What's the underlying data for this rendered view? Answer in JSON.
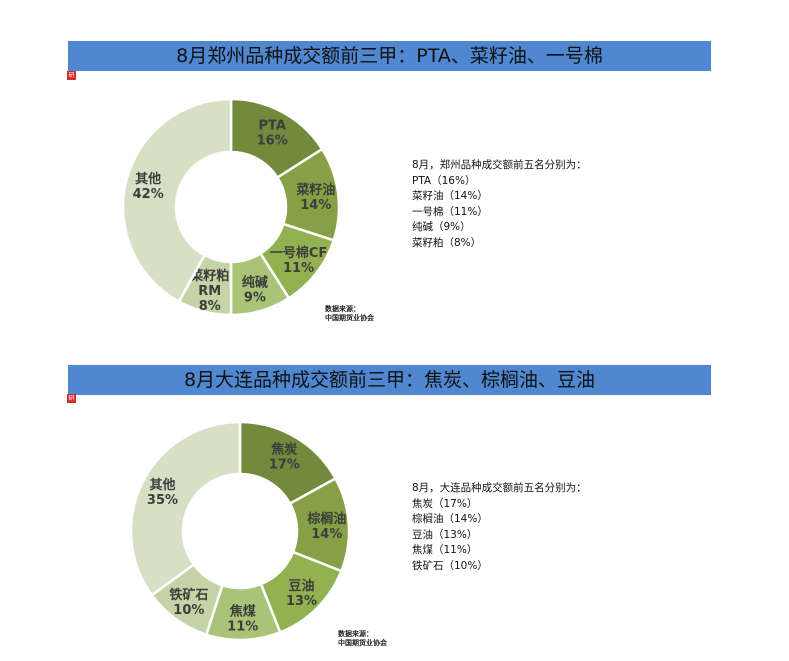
{
  "chart_data": [
    {
      "type": "pie",
      "title": "8月郑州品种成交额前三甲：PTA、菜籽油、一号棉",
      "slices": [
        {
          "label": [
            "PTA"
          ],
          "value": 16,
          "pct": "16%",
          "color": "#728a3c"
        },
        {
          "label": [
            "菜籽油"
          ],
          "value": 14,
          "pct": "14%",
          "color": "#86a145"
        },
        {
          "label": [
            "一号棉CF"
          ],
          "value": 11,
          "pct": "11%",
          "color": "#93b150"
        },
        {
          "label": [
            "纯碱"
          ],
          "value": 9,
          "pct": "9%",
          "color": "#a9c477"
        },
        {
          "label": [
            "菜籽粕",
            "RM"
          ],
          "value": 8,
          "pct": "8%",
          "color": "#c5d4a7"
        },
        {
          "label": [
            "其他"
          ],
          "value": 42,
          "pct": "42%",
          "color": "#d7e0c5"
        }
      ],
      "summary": [
        "8月，郑州品种成交额前五名分别为：",
        "PTA（16%）",
        "菜籽油（14%）",
        "一号棉（11%）",
        "纯碱（9%）",
        "菜籽粕（8%）"
      ],
      "source": [
        "数据来源：",
        "中国期货业协会"
      ]
    },
    {
      "type": "pie",
      "title": "8月大连品种成交额前三甲：焦炭、棕榈油、豆油",
      "slices": [
        {
          "label": [
            "焦炭"
          ],
          "value": 17,
          "pct": "17%",
          "color": "#728a3c"
        },
        {
          "label": [
            "棕榈油"
          ],
          "value": 14,
          "pct": "14%",
          "color": "#86a145"
        },
        {
          "label": [
            "豆油"
          ],
          "value": 13,
          "pct": "13%",
          "color": "#93b150"
        },
        {
          "label": [
            "焦煤"
          ],
          "value": 11,
          "pct": "11%",
          "color": "#a9c477"
        },
        {
          "label": [
            "铁矿石"
          ],
          "value": 10,
          "pct": "10%",
          "color": "#c5d4a7"
        },
        {
          "label": [
            "其他"
          ],
          "value": 35,
          "pct": "35%",
          "color": "#d7e0c5"
        }
      ],
      "summary": [
        "8月，大连品种成交额前五名分别为：",
        "焦炭（17%）",
        "棕榈油（14%）",
        "豆油（13%）",
        "焦煤（11%）",
        "铁矿石（10%）"
      ],
      "source": [
        "数据来源：",
        "中国期货业协会"
      ]
    }
  ],
  "logo_text": "研"
}
